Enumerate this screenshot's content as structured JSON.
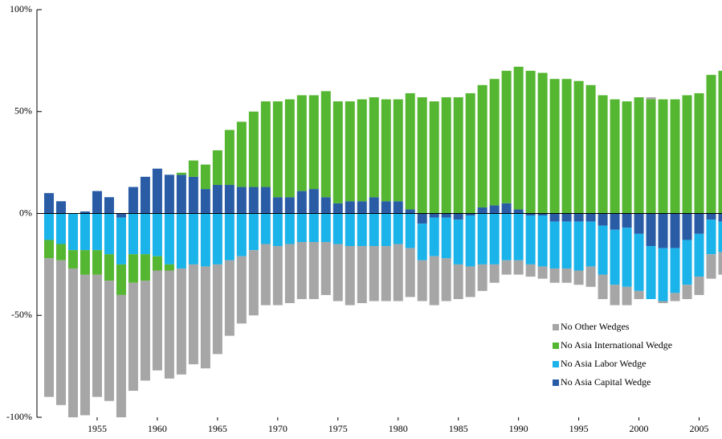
{
  "chart_data": {
    "type": "bar",
    "stacked": true,
    "x": [
      1951,
      1952,
      1953,
      1954,
      1955,
      1956,
      1957,
      1958,
      1959,
      1960,
      1961,
      1962,
      1963,
      1964,
      1965,
      1966,
      1967,
      1968,
      1969,
      1970,
      1971,
      1972,
      1973,
      1974,
      1975,
      1976,
      1977,
      1978,
      1979,
      1980,
      1981,
      1982,
      1983,
      1984,
      1985,
      1986,
      1987,
      1988,
      1989,
      1990,
      1991,
      1992,
      1993,
      1994,
      1995,
      1996,
      1997,
      1998,
      1999,
      2000,
      2001,
      2002,
      2003,
      2004,
      2005,
      2006,
      2007
    ],
    "xlim": [
      1950,
      2006.9
    ],
    "xticks": [
      1955,
      1960,
      1965,
      1970,
      1975,
      1980,
      1985,
      1990,
      1995,
      2000,
      2005
    ],
    "ylim": [
      -100,
      100
    ],
    "yticks": [
      {
        "value": -100,
        "label": "-100%"
      },
      {
        "value": -50,
        "label": "-50%"
      },
      {
        "value": 0,
        "label": "0%"
      },
      {
        "value": 50,
        "label": "50%"
      },
      {
        "value": 100,
        "label": "100%"
      }
    ],
    "legend": "lower right",
    "series": [
      {
        "name": "No Other Wedges",
        "color": "#a6a6a6",
        "values": [
          -68,
          -71,
          -73,
          -69,
          -60,
          -59,
          -60,
          -53,
          -49,
          -49,
          -53,
          -52,
          -49,
          -50,
          -44,
          -37,
          -33,
          -32,
          -30,
          -29,
          -29,
          -28,
          -28,
          -26,
          -28,
          -29,
          -28,
          -27,
          -27,
          -28,
          -24,
          -20,
          -24,
          -21,
          -17,
          -15,
          -13,
          -9,
          -7,
          -7,
          -6,
          -6,
          -7,
          -7,
          -7,
          -10,
          -12,
          -10,
          -9,
          -4,
          1,
          -1,
          -4,
          -7,
          -9,
          -12,
          -11
        ]
      },
      {
        "name": "No Asia International Wedge",
        "color": "#55b631",
        "values": [
          -9,
          -8,
          -9,
          -12,
          -12,
          -13,
          -15,
          -14,
          -13,
          -7,
          -3,
          1,
          8,
          12,
          17,
          27,
          32,
          37,
          42,
          47,
          48,
          47,
          46,
          52,
          50,
          49,
          50,
          49,
          50,
          50,
          57,
          57,
          55,
          57,
          57,
          59,
          60,
          62,
          65,
          70,
          70,
          69,
          66,
          66,
          65,
          63,
          58,
          56,
          55,
          57,
          56,
          56,
          56,
          58,
          59,
          68,
          70
        ]
      },
      {
        "name": "No Asia Labor Wedge",
        "color": "#1ab3ea",
        "values": [
          -13,
          -15,
          -18,
          -18,
          -18,
          -20,
          -23,
          -20,
          -20,
          -21,
          -25,
          -27,
          -25,
          -26,
          -25,
          -23,
          -21,
          -18,
          -15,
          -16,
          -15,
          -14,
          -14,
          -14,
          -15,
          -16,
          -16,
          -16,
          -16,
          -15,
          -17,
          -18,
          -19,
          -20,
          -22,
          -25,
          -25,
          -25,
          -23,
          -23,
          -24,
          -25,
          -23,
          -23,
          -24,
          -22,
          -24,
          -27,
          -29,
          -28,
          -26,
          -26,
          -22,
          -22,
          -21,
          -17,
          -15
        ]
      },
      {
        "name": "No Asia Capital Wedge",
        "color": "#2a5ca6",
        "values": [
          10,
          6,
          0,
          1,
          11,
          8,
          -2,
          13,
          18,
          22,
          19,
          19,
          18,
          12,
          14,
          14,
          13,
          13,
          13,
          8,
          8,
          11,
          12,
          8,
          5,
          6,
          6,
          8,
          6,
          6,
          2,
          -5,
          -2,
          -2,
          -3,
          -1,
          3,
          4,
          5,
          2,
          -1,
          -1,
          -4,
          -4,
          -4,
          -4,
          -6,
          -8,
          -7,
          -10,
          -16,
          -17,
          -17,
          -13,
          -10,
          -3,
          -4
        ]
      }
    ]
  }
}
